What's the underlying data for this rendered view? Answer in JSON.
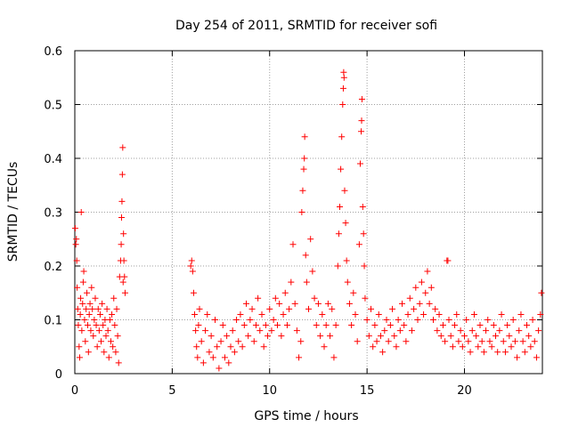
{
  "chart_data": {
    "type": "scatter",
    "title": "Day 254 of 2011, SRMTID for receiver sofi",
    "xlabel": "GPS time / hours",
    "ylabel": "SRMTID / TECUs",
    "xlim": [
      0,
      24
    ],
    "ylim": [
      0,
      0.6
    ],
    "xticks": [
      0,
      5,
      10,
      15,
      20
    ],
    "yticks": [
      0,
      0.1,
      0.2,
      0.3,
      0.4,
      0.5,
      0.6
    ],
    "xtick_labels": [
      "0",
      "5",
      "10",
      "15",
      "20"
    ],
    "ytick_labels": [
      "0",
      "0.1",
      "0.2",
      "0.3",
      "0.4",
      "0.5",
      "0.6"
    ],
    "grid": true,
    "marker": "+",
    "series": [
      {
        "name": "SRMTID",
        "color": "#ff0000",
        "points": [
          [
            0.02,
            0.27
          ],
          [
            0.05,
            0.24
          ],
          [
            0.08,
            0.25
          ],
          [
            0.1,
            0.21
          ],
          [
            0.12,
            0.16
          ],
          [
            0.15,
            0.12
          ],
          [
            0.18,
            0.09
          ],
          [
            0.22,
            0.05
          ],
          [
            0.25,
            0.03
          ],
          [
            0.28,
            0.11
          ],
          [
            0.3,
            0.14
          ],
          [
            0.33,
            0.3
          ],
          [
            0.36,
            0.08
          ],
          [
            0.4,
            0.13
          ],
          [
            0.43,
            0.17
          ],
          [
            0.46,
            0.19
          ],
          [
            0.5,
            0.1
          ],
          [
            0.54,
            0.06
          ],
          [
            0.58,
            0.12
          ],
          [
            0.62,
            0.15
          ],
          [
            0.66,
            0.09
          ],
          [
            0.7,
            0.04
          ],
          [
            0.74,
            0.11
          ],
          [
            0.78,
            0.13
          ],
          [
            0.82,
            0.08
          ],
          [
            0.86,
            0.16
          ],
          [
            0.9,
            0.12
          ],
          [
            0.95,
            0.07
          ],
          [
            1.0,
            0.1
          ],
          [
            1.05,
            0.14
          ],
          [
            1.1,
            0.09
          ],
          [
            1.15,
            0.05
          ],
          [
            1.2,
            0.12
          ],
          [
            1.25,
            0.08
          ],
          [
            1.3,
            0.11
          ],
          [
            1.35,
            0.06
          ],
          [
            1.4,
            0.13
          ],
          [
            1.45,
            0.09
          ],
          [
            1.5,
            0.04
          ],
          [
            1.55,
            0.1
          ],
          [
            1.6,
            0.07
          ],
          [
            1.65,
            0.12
          ],
          [
            1.7,
            0.08
          ],
          [
            1.75,
            0.03
          ],
          [
            1.8,
            0.1
          ],
          [
            1.85,
            0.06
          ],
          [
            1.9,
            0.11
          ],
          [
            1.95,
            0.05
          ],
          [
            2.0,
            0.14
          ],
          [
            2.05,
            0.09
          ],
          [
            2.1,
            0.04
          ],
          [
            2.15,
            0.12
          ],
          [
            2.2,
            0.07
          ],
          [
            2.25,
            0.02
          ],
          [
            2.3,
            0.18
          ],
          [
            2.35,
            0.21
          ],
          [
            2.38,
            0.24
          ],
          [
            2.4,
            0.29
          ],
          [
            2.42,
            0.32
          ],
          [
            2.44,
            0.37
          ],
          [
            2.46,
            0.42
          ],
          [
            2.48,
            0.17
          ],
          [
            2.5,
            0.26
          ],
          [
            2.52,
            0.21
          ],
          [
            2.55,
            0.18
          ],
          [
            2.58,
            0.15
          ],
          [
            5.95,
            0.2
          ],
          [
            6.0,
            0.21
          ],
          [
            6.05,
            0.19
          ],
          [
            6.1,
            0.15
          ],
          [
            6.15,
            0.11
          ],
          [
            6.2,
            0.08
          ],
          [
            6.25,
            0.05
          ],
          [
            6.3,
            0.03
          ],
          [
            6.35,
            0.09
          ],
          [
            6.4,
            0.12
          ],
          [
            6.5,
            0.06
          ],
          [
            6.6,
            0.02
          ],
          [
            6.7,
            0.08
          ],
          [
            6.8,
            0.11
          ],
          [
            6.9,
            0.04
          ],
          [
            7.0,
            0.07
          ],
          [
            7.1,
            0.03
          ],
          [
            7.2,
            0.1
          ],
          [
            7.3,
            0.05
          ],
          [
            7.4,
            0.01
          ],
          [
            7.5,
            0.06
          ],
          [
            7.6,
            0.09
          ],
          [
            7.7,
            0.03
          ],
          [
            7.8,
            0.07
          ],
          [
            7.9,
            0.02
          ],
          [
            8.0,
            0.05
          ],
          [
            8.1,
            0.08
          ],
          [
            8.2,
            0.04
          ],
          [
            8.3,
            0.1
          ],
          [
            8.4,
            0.06
          ],
          [
            8.5,
            0.11
          ],
          [
            8.6,
            0.05
          ],
          [
            8.7,
            0.09
          ],
          [
            8.8,
            0.13
          ],
          [
            8.9,
            0.07
          ],
          [
            9.0,
            0.1
          ],
          [
            9.1,
            0.12
          ],
          [
            9.2,
            0.06
          ],
          [
            9.3,
            0.09
          ],
          [
            9.4,
            0.14
          ],
          [
            9.5,
            0.08
          ],
          [
            9.6,
            0.11
          ],
          [
            9.7,
            0.05
          ],
          [
            9.8,
            0.09
          ],
          [
            9.9,
            0.07
          ],
          [
            10.0,
            0.12
          ],
          [
            10.1,
            0.08
          ],
          [
            10.2,
            0.1
          ],
          [
            10.3,
            0.14
          ],
          [
            10.4,
            0.09
          ],
          [
            10.5,
            0.13
          ],
          [
            10.6,
            0.07
          ],
          [
            10.7,
            0.11
          ],
          [
            10.8,
            0.15
          ],
          [
            10.9,
            0.09
          ],
          [
            11.0,
            0.12
          ],
          [
            11.1,
            0.17
          ],
          [
            11.2,
            0.24
          ],
          [
            11.3,
            0.13
          ],
          [
            11.4,
            0.08
          ],
          [
            11.5,
            0.03
          ],
          [
            11.6,
            0.06
          ],
          [
            11.65,
            0.3
          ],
          [
            11.7,
            0.34
          ],
          [
            11.75,
            0.38
          ],
          [
            11.78,
            0.4
          ],
          [
            11.8,
            0.44
          ],
          [
            11.85,
            0.22
          ],
          [
            11.9,
            0.17
          ],
          [
            12.0,
            0.12
          ],
          [
            12.1,
            0.25
          ],
          [
            12.2,
            0.19
          ],
          [
            12.3,
            0.14
          ],
          [
            12.4,
            0.09
          ],
          [
            12.5,
            0.13
          ],
          [
            12.6,
            0.07
          ],
          [
            12.7,
            0.11
          ],
          [
            12.8,
            0.05
          ],
          [
            12.9,
            0.09
          ],
          [
            13.0,
            0.13
          ],
          [
            13.1,
            0.07
          ],
          [
            13.2,
            0.12
          ],
          [
            13.3,
            0.03
          ],
          [
            13.4,
            0.09
          ],
          [
            13.5,
            0.2
          ],
          [
            13.55,
            0.26
          ],
          [
            13.6,
            0.31
          ],
          [
            13.65,
            0.38
          ],
          [
            13.7,
            0.44
          ],
          [
            13.75,
            0.5
          ],
          [
            13.78,
            0.53
          ],
          [
            13.8,
            0.56
          ],
          [
            13.82,
            0.55
          ],
          [
            13.85,
            0.34
          ],
          [
            13.9,
            0.28
          ],
          [
            13.95,
            0.21
          ],
          [
            14.0,
            0.17
          ],
          [
            14.1,
            0.13
          ],
          [
            14.2,
            0.09
          ],
          [
            14.3,
            0.15
          ],
          [
            14.4,
            0.11
          ],
          [
            14.5,
            0.06
          ],
          [
            14.6,
            0.24
          ],
          [
            14.65,
            0.39
          ],
          [
            14.7,
            0.45
          ],
          [
            14.72,
            0.47
          ],
          [
            14.74,
            0.51
          ],
          [
            14.78,
            0.31
          ],
          [
            14.82,
            0.26
          ],
          [
            14.86,
            0.2
          ],
          [
            14.9,
            0.14
          ],
          [
            15.0,
            0.1
          ],
          [
            15.1,
            0.07
          ],
          [
            15.2,
            0.12
          ],
          [
            15.3,
            0.05
          ],
          [
            15.4,
            0.09
          ],
          [
            15.5,
            0.06
          ],
          [
            15.6,
            0.11
          ],
          [
            15.7,
            0.07
          ],
          [
            15.8,
            0.04
          ],
          [
            15.9,
            0.08
          ],
          [
            16.0,
            0.1
          ],
          [
            16.1,
            0.06
          ],
          [
            16.2,
            0.09
          ],
          [
            16.3,
            0.12
          ],
          [
            16.4,
            0.07
          ],
          [
            16.5,
            0.05
          ],
          [
            16.6,
            0.1
          ],
          [
            16.7,
            0.08
          ],
          [
            16.8,
            0.13
          ],
          [
            16.9,
            0.09
          ],
          [
            17.0,
            0.06
          ],
          [
            17.1,
            0.11
          ],
          [
            17.2,
            0.14
          ],
          [
            17.3,
            0.08
          ],
          [
            17.4,
            0.12
          ],
          [
            17.5,
            0.16
          ],
          [
            17.6,
            0.1
          ],
          [
            17.7,
            0.13
          ],
          [
            17.8,
            0.17
          ],
          [
            17.9,
            0.11
          ],
          [
            18.0,
            0.15
          ],
          [
            18.1,
            0.19
          ],
          [
            18.2,
            0.13
          ],
          [
            18.3,
            0.16
          ],
          [
            18.4,
            0.1
          ],
          [
            18.5,
            0.12
          ],
          [
            18.6,
            0.08
          ],
          [
            18.7,
            0.11
          ],
          [
            18.8,
            0.07
          ],
          [
            18.9,
            0.09
          ],
          [
            19.0,
            0.06
          ],
          [
            19.1,
            0.21
          ],
          [
            19.15,
            0.21
          ],
          [
            19.2,
            0.1
          ],
          [
            19.3,
            0.07
          ],
          [
            19.4,
            0.05
          ],
          [
            19.5,
            0.09
          ],
          [
            19.6,
            0.11
          ],
          [
            19.7,
            0.06
          ],
          [
            19.8,
            0.08
          ],
          [
            19.9,
            0.05
          ],
          [
            20.0,
            0.07
          ],
          [
            20.1,
            0.1
          ],
          [
            20.2,
            0.06
          ],
          [
            20.3,
            0.04
          ],
          [
            20.4,
            0.08
          ],
          [
            20.5,
            0.11
          ],
          [
            20.6,
            0.07
          ],
          [
            20.7,
            0.05
          ],
          [
            20.8,
            0.09
          ],
          [
            20.9,
            0.06
          ],
          [
            21.0,
            0.04
          ],
          [
            21.1,
            0.08
          ],
          [
            21.2,
            0.1
          ],
          [
            21.3,
            0.06
          ],
          [
            21.4,
            0.05
          ],
          [
            21.5,
            0.09
          ],
          [
            21.6,
            0.07
          ],
          [
            21.7,
            0.04
          ],
          [
            21.8,
            0.08
          ],
          [
            21.9,
            0.11
          ],
          [
            22.0,
            0.06
          ],
          [
            22.1,
            0.04
          ],
          [
            22.2,
            0.09
          ],
          [
            22.3,
            0.07
          ],
          [
            22.4,
            0.05
          ],
          [
            22.5,
            0.1
          ],
          [
            22.6,
            0.06
          ],
          [
            22.7,
            0.03
          ],
          [
            22.8,
            0.08
          ],
          [
            22.9,
            0.11
          ],
          [
            23.0,
            0.06
          ],
          [
            23.1,
            0.04
          ],
          [
            23.2,
            0.09
          ],
          [
            23.3,
            0.07
          ],
          [
            23.4,
            0.05
          ],
          [
            23.5,
            0.1
          ],
          [
            23.6,
            0.06
          ],
          [
            23.7,
            0.03
          ],
          [
            23.8,
            0.08
          ],
          [
            23.9,
            0.11
          ],
          [
            23.95,
            0.15
          ]
        ]
      }
    ]
  }
}
